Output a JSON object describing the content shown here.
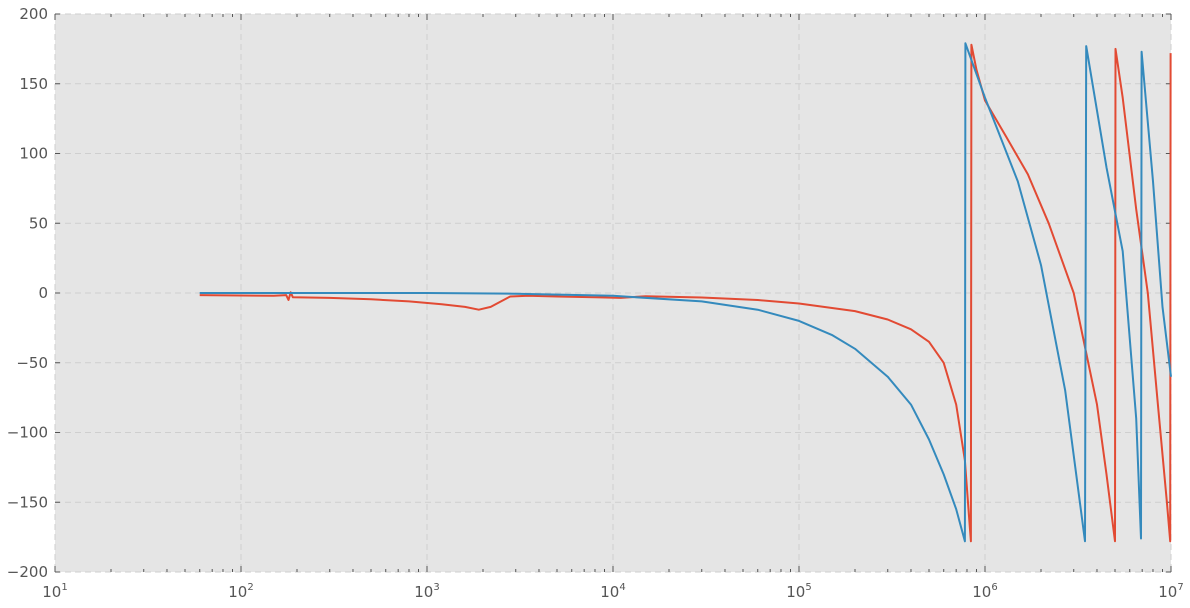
{
  "chart_data": {
    "type": "line",
    "title": "",
    "xlabel": "",
    "ylabel": "",
    "xscale": "log",
    "xlim": [
      10,
      10000000
    ],
    "ylim": [
      -200,
      200
    ],
    "grid": true,
    "legend": "none",
    "x_tick_labels": [
      {
        "base": "10",
        "exp": "1",
        "value": 10
      },
      {
        "base": "10",
        "exp": "2",
        "value": 100
      },
      {
        "base": "10",
        "exp": "3",
        "value": 1000
      },
      {
        "base": "10",
        "exp": "4",
        "value": 10000
      },
      {
        "base": "10",
        "exp": "5",
        "value": 100000
      },
      {
        "base": "10",
        "exp": "6",
        "value": 1000000
      },
      {
        "base": "10",
        "exp": "7",
        "value": 10000000
      }
    ],
    "y_ticks": [
      -200,
      -150,
      -100,
      -50,
      0,
      50,
      100,
      150,
      200
    ],
    "y_tick_labels": [
      "−200",
      "−150",
      "−100",
      "−50",
      "0",
      "50",
      "100",
      "150",
      "200"
    ],
    "series": [
      {
        "color": "#e24a33",
        "points": [
          [
            60,
            -1.5
          ],
          [
            100,
            -1.8
          ],
          [
            150,
            -2.0
          ],
          [
            175,
            -1.5
          ],
          [
            180,
            -5.0
          ],
          [
            185,
            0.5
          ],
          [
            190,
            -3.0
          ],
          [
            300,
            -3.5
          ],
          [
            500,
            -4.5
          ],
          [
            800,
            -6.0
          ],
          [
            1200,
            -8.0
          ],
          [
            1600,
            -10.0
          ],
          [
            1900,
            -12.0
          ],
          [
            2200,
            -10.0
          ],
          [
            2500,
            -6.0
          ],
          [
            2800,
            -2.5
          ],
          [
            3500,
            -2.0
          ],
          [
            5000,
            -2.5
          ],
          [
            8000,
            -3.0
          ],
          [
            11000,
            -3.5
          ],
          [
            15000,
            -2.3
          ],
          [
            30000,
            -3.2
          ],
          [
            60000,
            -5.0
          ],
          [
            100000,
            -7.5
          ],
          [
            200000,
            -13.0
          ],
          [
            300000,
            -19.0
          ],
          [
            400000,
            -26.0
          ],
          [
            500000,
            -35.0
          ],
          [
            600000,
            -50.0
          ],
          [
            700000,
            -80.0
          ],
          [
            780000,
            -120.0
          ],
          [
            820000,
            -160.0
          ],
          [
            840000,
            -178.0
          ],
          [
            845000,
            178.0
          ],
          [
            900000,
            160.0
          ],
          [
            1000000,
            138.0
          ],
          [
            1300000,
            112.0
          ],
          [
            1700000,
            85.0
          ],
          [
            2200000,
            50.0
          ],
          [
            3000000,
            0.0
          ],
          [
            4000000,
            -80.0
          ],
          [
            4500000,
            -130.0
          ],
          [
            5000000,
            -178.0
          ],
          [
            5030000,
            175.0
          ],
          [
            5500000,
            140.0
          ],
          [
            6500000,
            60.0
          ],
          [
            7500000,
            0.0
          ],
          [
            8500000,
            -80.0
          ],
          [
            9500000,
            -150.0
          ],
          [
            9900000,
            -178.0
          ],
          [
            9950000,
            172.0
          ]
        ]
      },
      {
        "color": "#348abd",
        "points": [
          [
            60,
            0.0
          ],
          [
            1000,
            0.0
          ],
          [
            3000,
            -0.5
          ],
          [
            10000,
            -2.0
          ],
          [
            30000,
            -6.0
          ],
          [
            60000,
            -12.0
          ],
          [
            100000,
            -20.0
          ],
          [
            150000,
            -30.0
          ],
          [
            200000,
            -40.0
          ],
          [
            300000,
            -60.0
          ],
          [
            400000,
            -80.0
          ],
          [
            500000,
            -105.0
          ],
          [
            600000,
            -130.0
          ],
          [
            700000,
            -155.0
          ],
          [
            780000,
            -178.0
          ],
          [
            785000,
            179.0
          ],
          [
            1000000,
            140.0
          ],
          [
            1500000,
            80.0
          ],
          [
            2000000,
            20.0
          ],
          [
            2700000,
            -70.0
          ],
          [
            3450000,
            -178.0
          ],
          [
            3500000,
            177.0
          ],
          [
            4500000,
            90.0
          ],
          [
            5500000,
            30.0
          ],
          [
            6500000,
            -90.0
          ],
          [
            6900000,
            -176.0
          ],
          [
            6950000,
            173.0
          ],
          [
            8000000,
            80.0
          ],
          [
            9000000,
            -10.0
          ],
          [
            10000000,
            -60.0
          ]
        ]
      }
    ]
  }
}
